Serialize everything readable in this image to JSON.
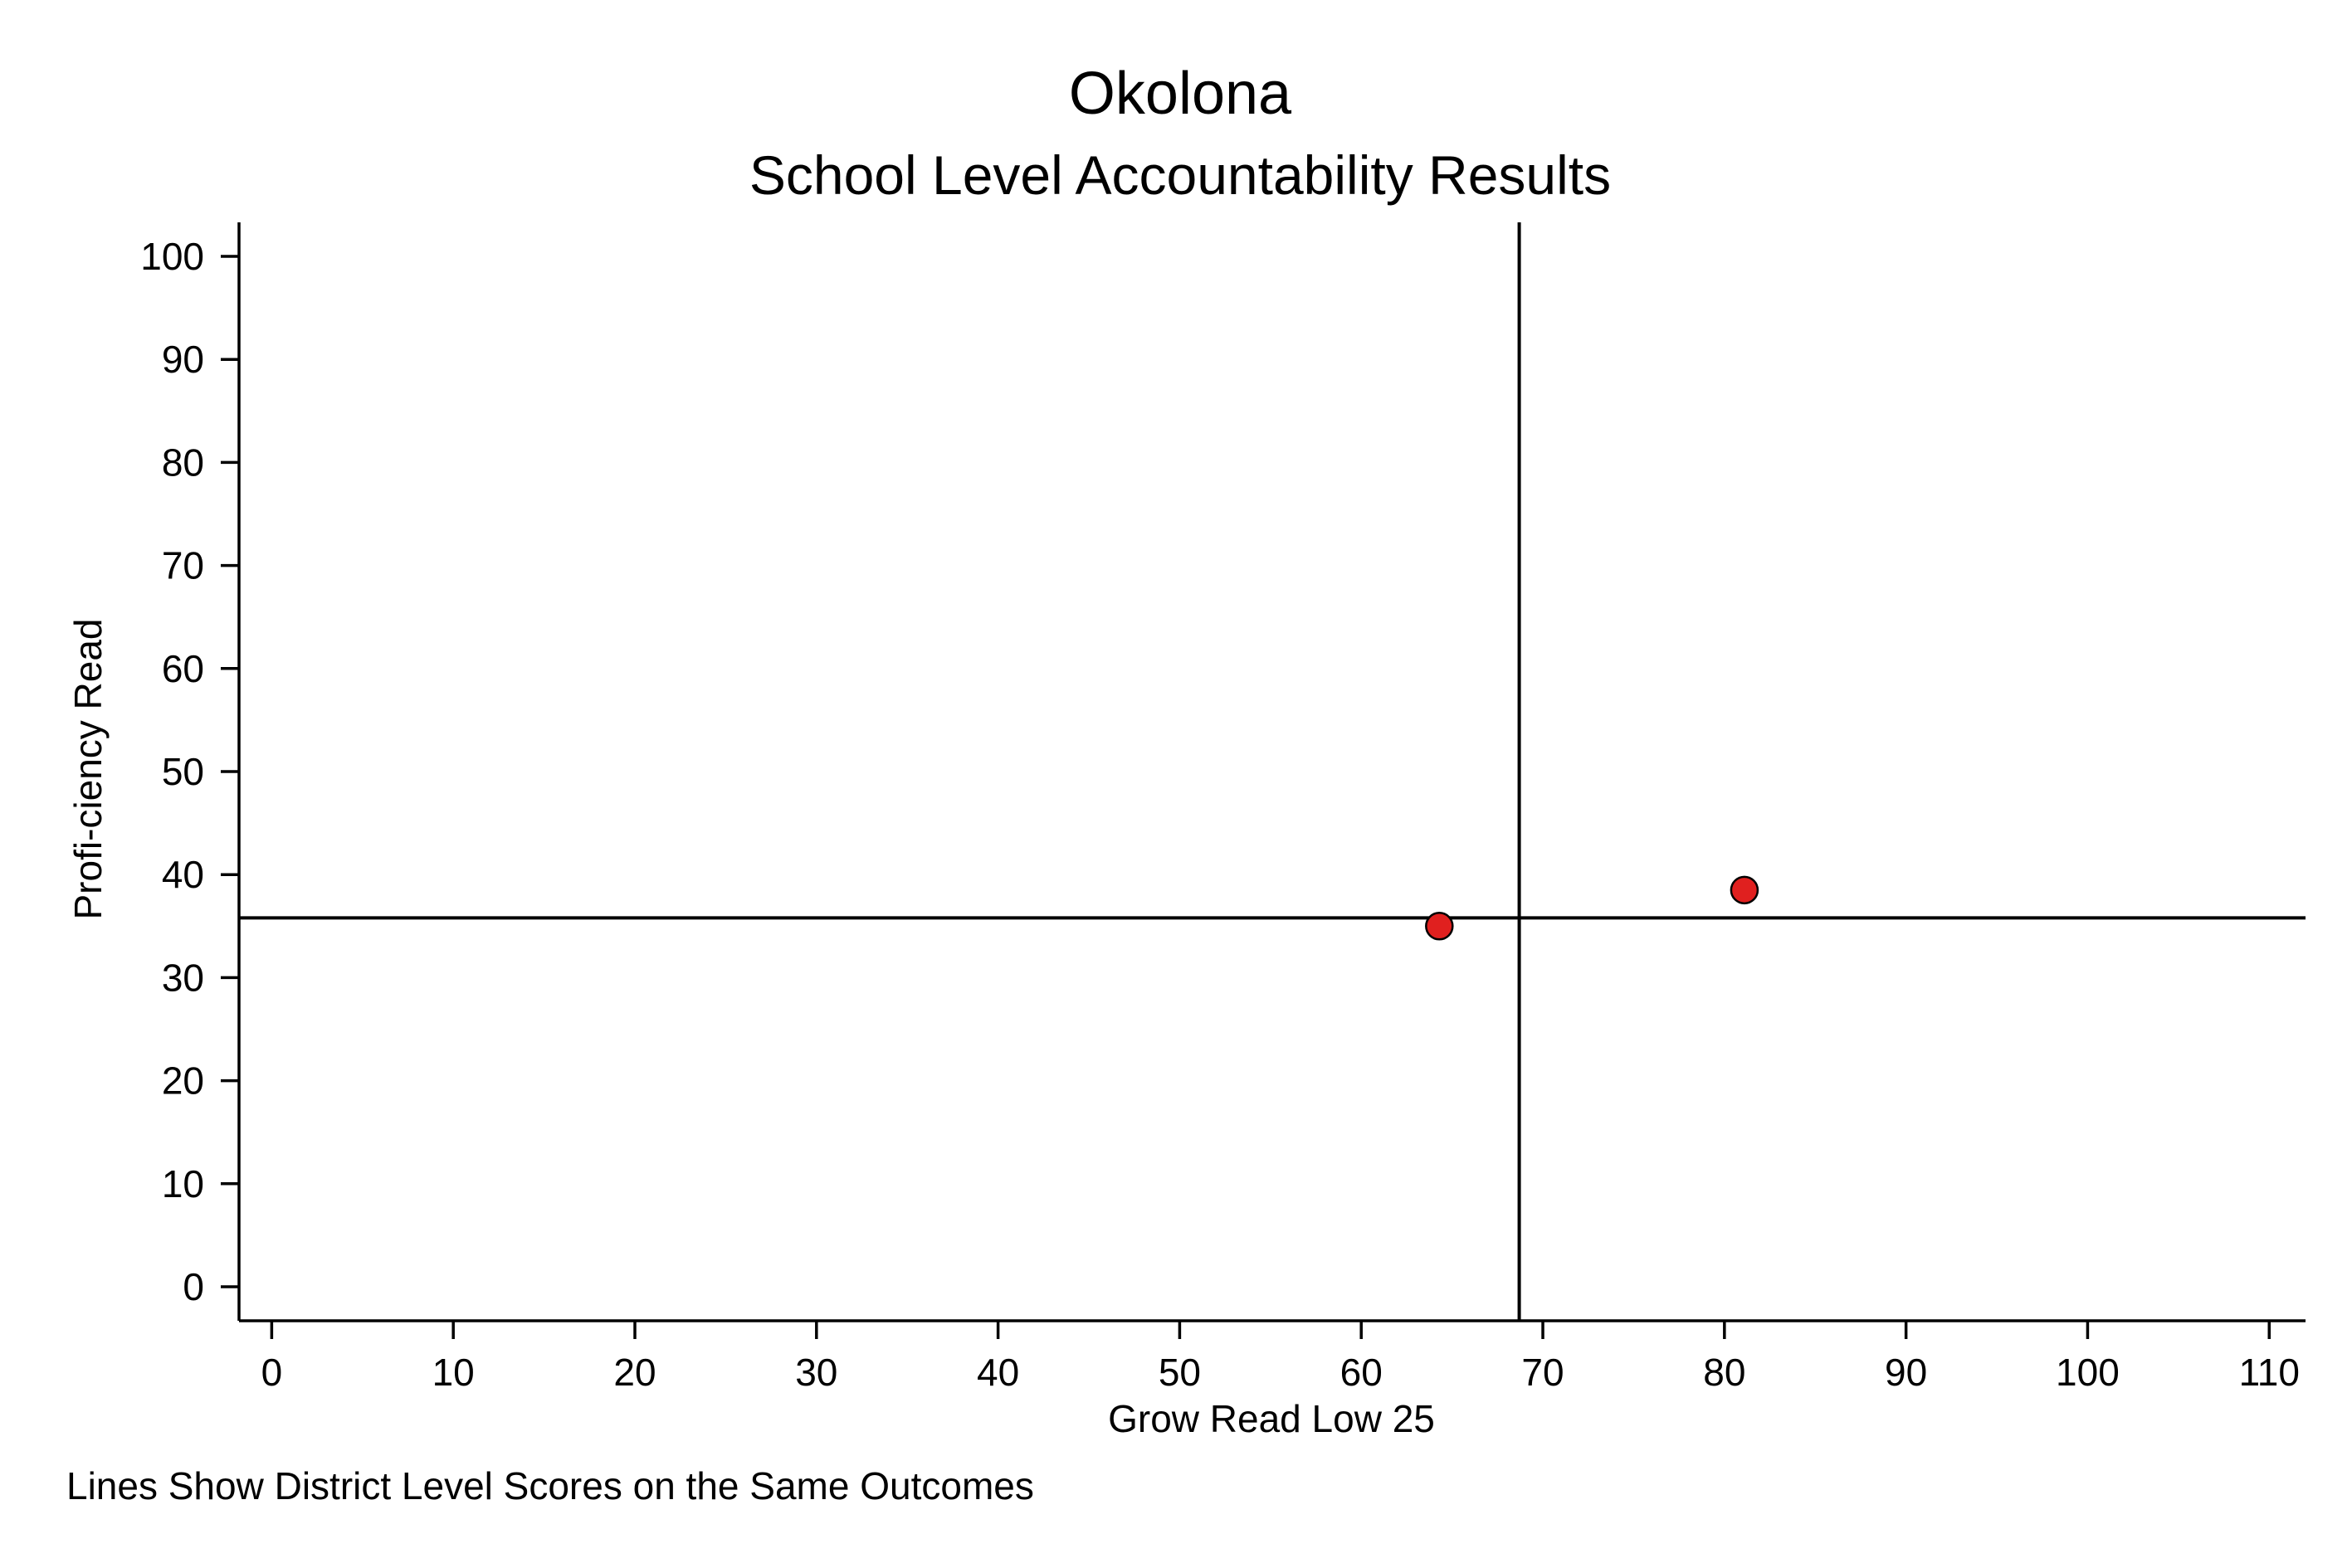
{
  "chart_data": {
    "type": "scatter",
    "title": "Okolona",
    "subtitle": "School Level Accountability Results",
    "xlabel": "Grow Read Low 25",
    "ylabel": "Profi-ciency Read",
    "note": "Lines Show District Level Scores on the Same Outcomes",
    "xlim": [
      -1.8,
      112
    ],
    "ylim": [
      -3.3,
      103.3
    ],
    "xticks": [
      0,
      10,
      20,
      30,
      40,
      50,
      60,
      70,
      80,
      90,
      100,
      110
    ],
    "yticks": [
      0,
      10,
      20,
      30,
      40,
      50,
      60,
      70,
      80,
      90,
      100
    ],
    "grid": false,
    "marker_color": "#e0201f",
    "series": [
      {
        "points": [
          {
            "x": 64.3,
            "y": 35
          },
          {
            "x": 81.1,
            "y": 38.5
          }
        ]
      }
    ],
    "reference_lines": {
      "x": 68.7,
      "y": 35.8
    }
  }
}
